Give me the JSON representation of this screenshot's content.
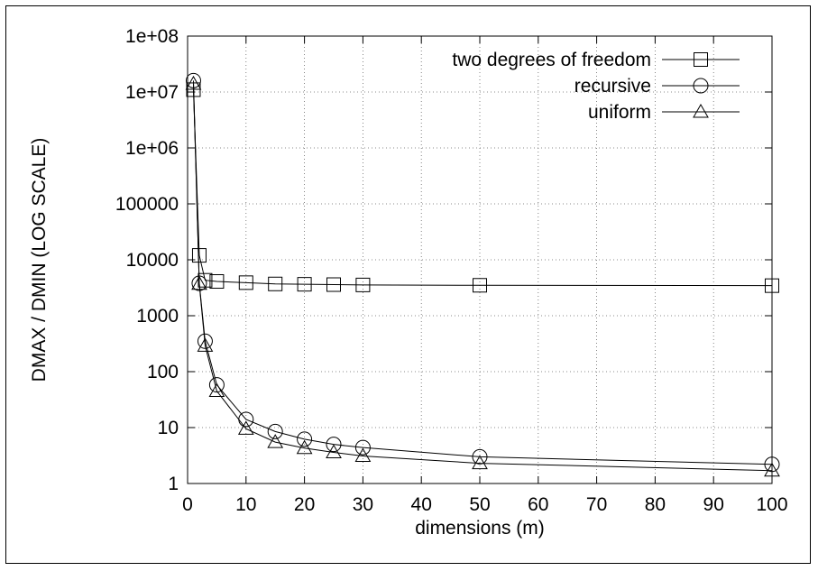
{
  "chart_data": {
    "type": "line",
    "xlabel": "dimensions (m)",
    "ylabel": "DMAX / DMIN (LOG SCALE)",
    "xlim": [
      0,
      100
    ],
    "ylim": [
      1,
      100000000
    ],
    "yscale": "log",
    "xticks": [
      0,
      10,
      20,
      30,
      40,
      50,
      60,
      70,
      80,
      90,
      100
    ],
    "xtick_labels": [
      "0",
      "10",
      "20",
      "30",
      "40",
      "50",
      "60",
      "70",
      "80",
      "90",
      "100"
    ],
    "yticks": [
      1,
      10,
      100,
      1000,
      10000,
      100000,
      1000000,
      10000000,
      100000000
    ],
    "ytick_labels": [
      "1",
      "10",
      "100",
      "1000",
      "10000",
      "100000",
      "1e+06",
      "1e+07",
      "1e+08"
    ],
    "grid": true,
    "legend_position": "top-right",
    "series": [
      {
        "name": "two degrees of freedom",
        "marker": "square",
        "x": [
          1,
          2,
          3,
          5,
          10,
          15,
          20,
          25,
          30,
          50,
          100
        ],
        "y": [
          11000000,
          12000,
          4300,
          4100,
          3900,
          3700,
          3650,
          3600,
          3550,
          3500,
          3450
        ]
      },
      {
        "name": "recursive",
        "marker": "circle",
        "x": [
          1,
          2,
          3,
          5,
          10,
          15,
          20,
          25,
          30,
          50,
          100
        ],
        "y": [
          16000000,
          3800,
          350,
          58,
          14,
          8.5,
          6.2,
          5.0,
          4.4,
          3.0,
          2.2
        ]
      },
      {
        "name": "uniform",
        "marker": "triangle",
        "x": [
          1,
          2,
          3,
          5,
          10,
          15,
          20,
          25,
          30,
          50,
          100
        ],
        "y": [
          14000000,
          3700,
          290,
          45,
          9.5,
          5.5,
          4.3,
          3.6,
          3.1,
          2.3,
          1.7
        ]
      }
    ]
  }
}
